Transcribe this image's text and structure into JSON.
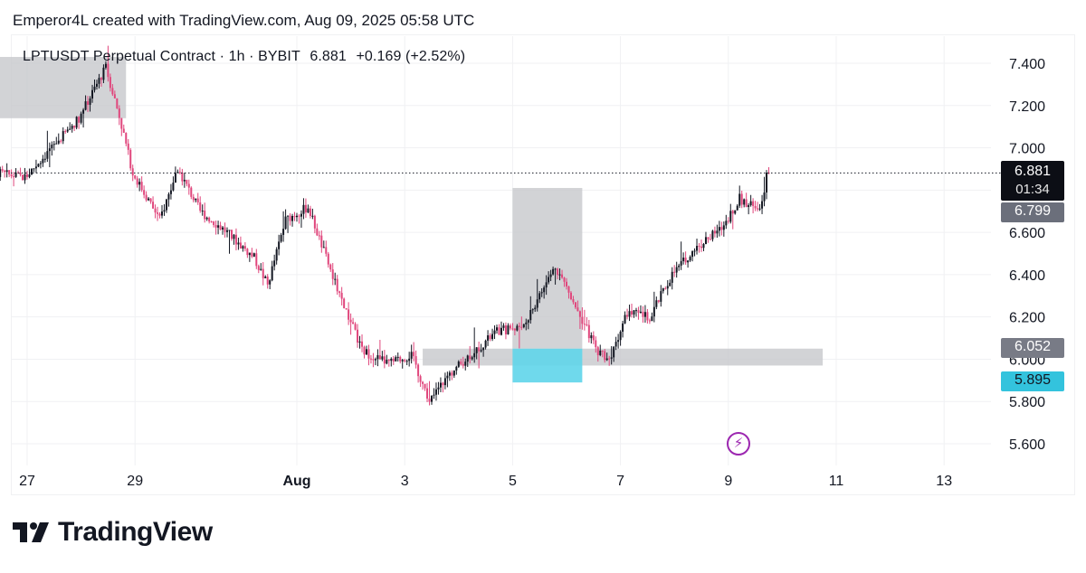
{
  "header": {
    "attribution": "Emperor4L created with TradingView.com, Aug 09, 2025 05:58 UTC"
  },
  "legend": {
    "symbol": "LPTUSDT Perpetual Contract · 1h · BYBIT",
    "last": "6.881",
    "change": "+0.169 (+2.52%)"
  },
  "price_tags": {
    "last": "6.881",
    "countdown": "01:34",
    "level_a": "6.799",
    "level_b": "6.052",
    "level_c": "5.895"
  },
  "brand": {
    "logo_text": "TradingView"
  },
  "icons": {
    "alert": "lightning-bolt-icon"
  },
  "colors": {
    "up": "#131722",
    "down": "#e0467c",
    "zone_gray": "#c7c8cc",
    "zone_cyan": "#5fd5ea",
    "last_line": "#131722"
  },
  "chart_data": {
    "type": "candlestick",
    "title": "LPTUSDT Perpetual Contract · 1h · BYBIT",
    "y_axis": {
      "ticks": [
        5.6,
        5.8,
        6.0,
        6.2,
        6.4,
        6.6,
        6.8,
        7.0,
        7.2,
        7.4
      ],
      "tick_labels": [
        "5.600",
        "5.800",
        "6.000",
        "6.200",
        "6.400",
        "6.600",
        "6.800",
        "7.000",
        "7.200",
        "7.400"
      ],
      "range": [
        5.55,
        7.48
      ],
      "side": "right"
    },
    "x_axis": {
      "tick_labels": [
        "27",
        "29",
        "Aug",
        "3",
        "5",
        "7",
        "9",
        "11",
        "13"
      ],
      "range_days": [
        "Jul 26",
        "Aug 14"
      ]
    },
    "grid": true,
    "last_price": 6.881,
    "marked_levels": [
      6.799,
      6.052,
      5.895
    ],
    "zones": [
      {
        "color": "gray",
        "from": "Jul 26",
        "to": "Jul 28 20:00",
        "low": 7.14,
        "high": 7.43
      },
      {
        "color": "gray",
        "from": "Aug 05",
        "to": "Aug 06 07:00",
        "low": 6.05,
        "high": 6.81
      },
      {
        "color": "gray",
        "from": "Aug 03 08:00",
        "to": "Aug 10 18:00",
        "low": 5.97,
        "high": 6.05
      },
      {
        "color": "cyan",
        "from": "Aug 05",
        "to": "Aug 06 07:00",
        "low": 5.89,
        "high": 6.05
      }
    ],
    "price_path": [
      [
        "Jul 26 00:00",
        6.83
      ],
      [
        "Jul 26 12:00",
        6.88
      ],
      [
        "Jul 27 00:00",
        6.86
      ],
      [
        "Jul 27 12:00",
        7.0
      ],
      [
        "Jul 28 00:00",
        7.14
      ],
      [
        "Jul 28 12:00",
        7.38
      ],
      [
        "Jul 28 18:00",
        7.15
      ],
      [
        "Jul 29 00:00",
        6.88
      ],
      [
        "Jul 29 12:00",
        6.66
      ],
      [
        "Jul 29 20:00",
        6.9
      ],
      [
        "Jul 30 06:00",
        6.7
      ],
      [
        "Jul 30 18:00",
        6.6
      ],
      [
        "Jul 31 06:00",
        6.48
      ],
      [
        "Jul 31 12:00",
        6.35
      ],
      [
        "Jul 31 20:00",
        6.66
      ],
      [
        "Aug 01 06:00",
        6.72
      ],
      [
        "Aug 01 18:00",
        6.36
      ],
      [
        "Aug 02 06:00",
        6.04
      ],
      [
        "Aug 02 18:00",
        5.98
      ],
      [
        "Aug 03 04:00",
        6.02
      ],
      [
        "Aug 03 12:00",
        5.8
      ],
      [
        "Aug 03 20:00",
        5.92
      ],
      [
        "Aug 04 06:00",
        6.02
      ],
      [
        "Aug 04 18:00",
        6.13
      ],
      [
        "Aug 05 06:00",
        6.16
      ],
      [
        "Aug 05 20:00",
        6.44
      ],
      [
        "Aug 06 04:00",
        6.28
      ],
      [
        "Aug 06 14:00",
        6.05
      ],
      [
        "Aug 06 20:00",
        6.0
      ],
      [
        "Aug 07 04:00",
        6.22
      ],
      [
        "Aug 07 14:00",
        6.2
      ],
      [
        "Aug 08 00:00",
        6.4
      ],
      [
        "Aug 08 10:00",
        6.52
      ],
      [
        "Aug 08 22:00",
        6.62
      ],
      [
        "Aug 09 06:00",
        6.76
      ],
      [
        "Aug 09 12:00",
        6.72
      ],
      [
        "Aug 09 16:00",
        6.74
      ],
      [
        "Aug 09 18:00",
        6.881
      ]
    ]
  }
}
